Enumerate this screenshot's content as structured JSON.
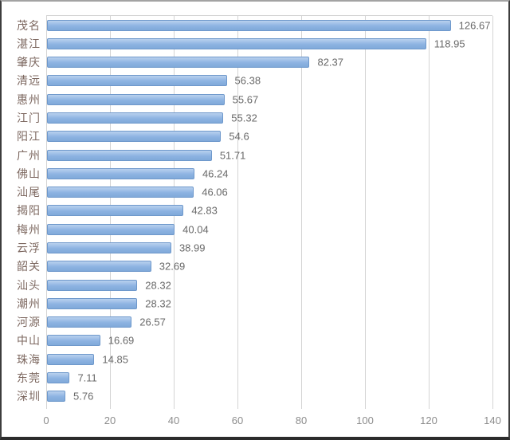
{
  "chart_data": {
    "type": "bar",
    "orientation": "horizontal",
    "title": "",
    "xlabel": "",
    "ylabel": "",
    "xlim": [
      0,
      140
    ],
    "x_ticks": [
      0,
      20,
      40,
      60,
      80,
      100,
      120,
      140
    ],
    "grid": true,
    "legend": false,
    "categories": [
      "茂名",
      "湛江",
      "肇庆",
      "清远",
      "惠州",
      "江门",
      "阳江",
      "广州",
      "佛山",
      "汕尾",
      "揭阳",
      "梅州",
      "云浮",
      "韶关",
      "汕头",
      "潮州",
      "河源",
      "中山",
      "珠海",
      "东莞",
      "深圳"
    ],
    "values": [
      126.67,
      118.95,
      82.37,
      56.38,
      55.67,
      55.32,
      54.6,
      51.71,
      46.24,
      46.06,
      42.83,
      40.04,
      38.99,
      32.69,
      28.32,
      28.32,
      26.57,
      16.69,
      14.85,
      7.11,
      5.76
    ],
    "value_labels": [
      "126.67",
      "118.95",
      "82.37",
      "56.38",
      "55.67",
      "55.32",
      "54.6",
      "51.71",
      "46.24",
      "46.06",
      "42.83",
      "40.04",
      "38.99",
      "32.69",
      "28.32",
      "28.32",
      "26.57",
      "16.69",
      "14.85",
      "7.11",
      "5.76"
    ]
  },
  "colors": {
    "bar_top": "#b9d1ee",
    "bar_mid": "#8db3e2",
    "bar_bottom": "#80a9d9",
    "bar_border": "#6e98cb",
    "gridline": "#d4d4d4",
    "tick_label": "#8d8d8d",
    "value_label": "#696969",
    "category_label": "#7d6860"
  }
}
